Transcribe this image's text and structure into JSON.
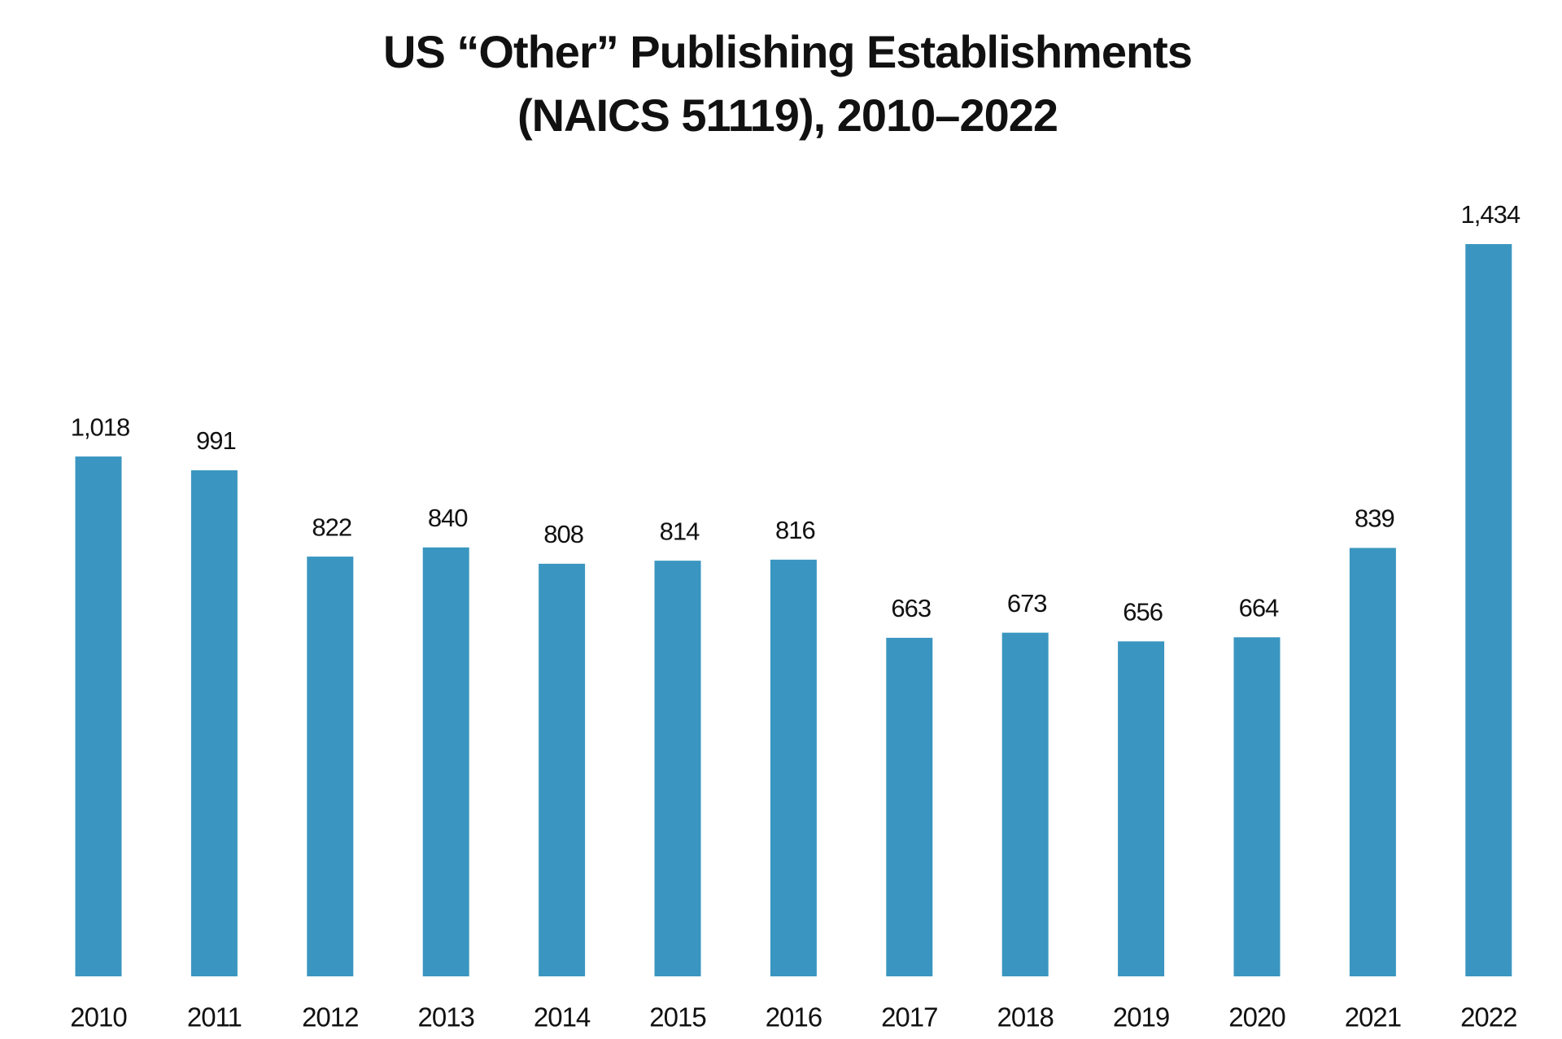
{
  "chart_data": {
    "type": "bar",
    "title": [
      "US “Other” Publishing Establishments",
      "(NAICS 51119), 2010–2022"
    ],
    "categories": [
      "2010",
      "2011",
      "2012",
      "2013",
      "2014",
      "2015",
      "2016",
      "2017",
      "2018",
      "2019",
      "2020",
      "2021",
      "2022"
    ],
    "values": [
      1018,
      991,
      822,
      840,
      808,
      814,
      816,
      663,
      673,
      656,
      664,
      839,
      1434
    ],
    "value_labels": [
      "1,018",
      "991",
      "822",
      "840",
      "808",
      "814",
      "816",
      "663",
      "673",
      "656",
      "664",
      "839",
      "1,434"
    ],
    "color": "#3a96c0"
  }
}
